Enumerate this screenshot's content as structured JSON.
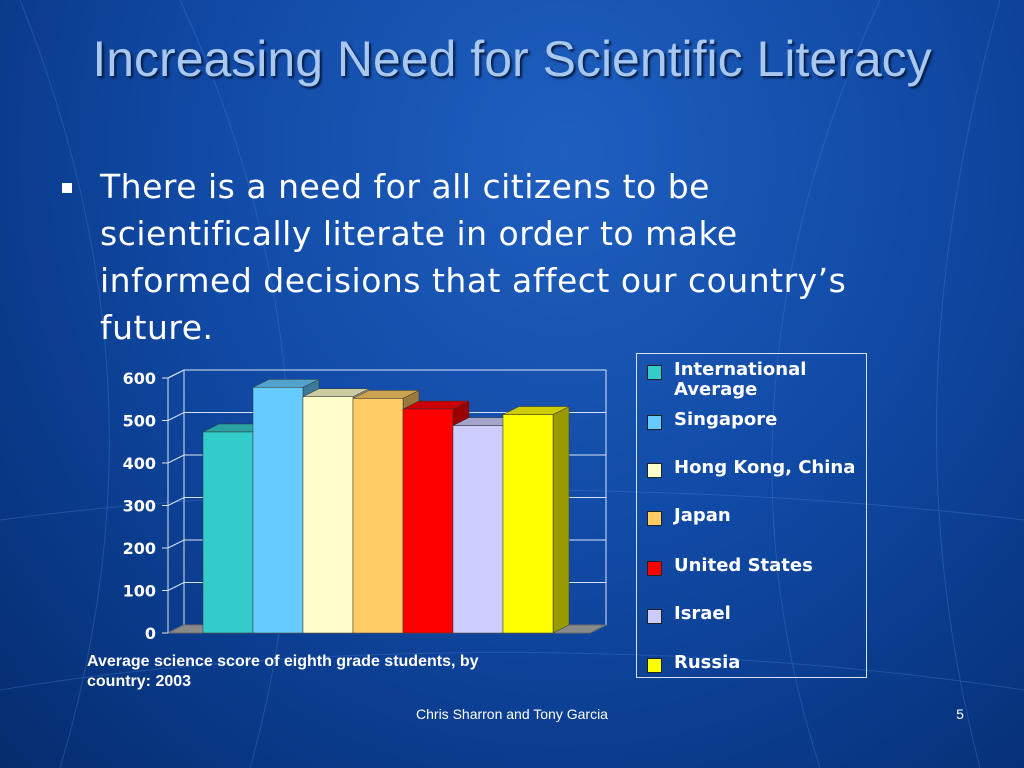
{
  "slide": {
    "title": "Increasing Need for Scientific Literacy",
    "bullets": [
      "There is a need for all citizens to be scientifically literate in order to make informed decisions that affect our country’s future."
    ],
    "caption": "Average science score of eighth grade students, by country:  2003",
    "footer": "Chris Sharron and Tony Garcia",
    "page_number": "5",
    "background_color": "#114aa6"
  },
  "legend": {
    "items": [
      {
        "label": "International Average",
        "color": "#33cccc"
      },
      {
        "label": "Singapore",
        "color": "#66ccff"
      },
      {
        "label": "Hong Kong, China",
        "color": "#ffffcc"
      },
      {
        "label": "Japan",
        "color": "#ffcc66"
      },
      {
        "label": "United States",
        "color": "#ff0000"
      },
      {
        "label": "Israel",
        "color": "#ccccff"
      },
      {
        "label": "Russia",
        "color": "#ffff00"
      }
    ]
  },
  "chart_data": {
    "type": "bar",
    "categories": [
      "International Average",
      "Singapore",
      "Hong Kong, China",
      "Japan",
      "United States",
      "Israel",
      "Russia"
    ],
    "values": [
      473,
      578,
      556,
      552,
      527,
      488,
      514
    ],
    "colors": [
      "#33cccc",
      "#66ccff",
      "#ffffcc",
      "#ffcc66",
      "#ff0000",
      "#ccccff",
      "#ffff00"
    ],
    "ylim": [
      0,
      600
    ],
    "yticks": [
      "0",
      "100",
      "200",
      "300",
      "400",
      "500",
      "600"
    ],
    "three_d": true,
    "grid": true,
    "legend_position": "right"
  }
}
